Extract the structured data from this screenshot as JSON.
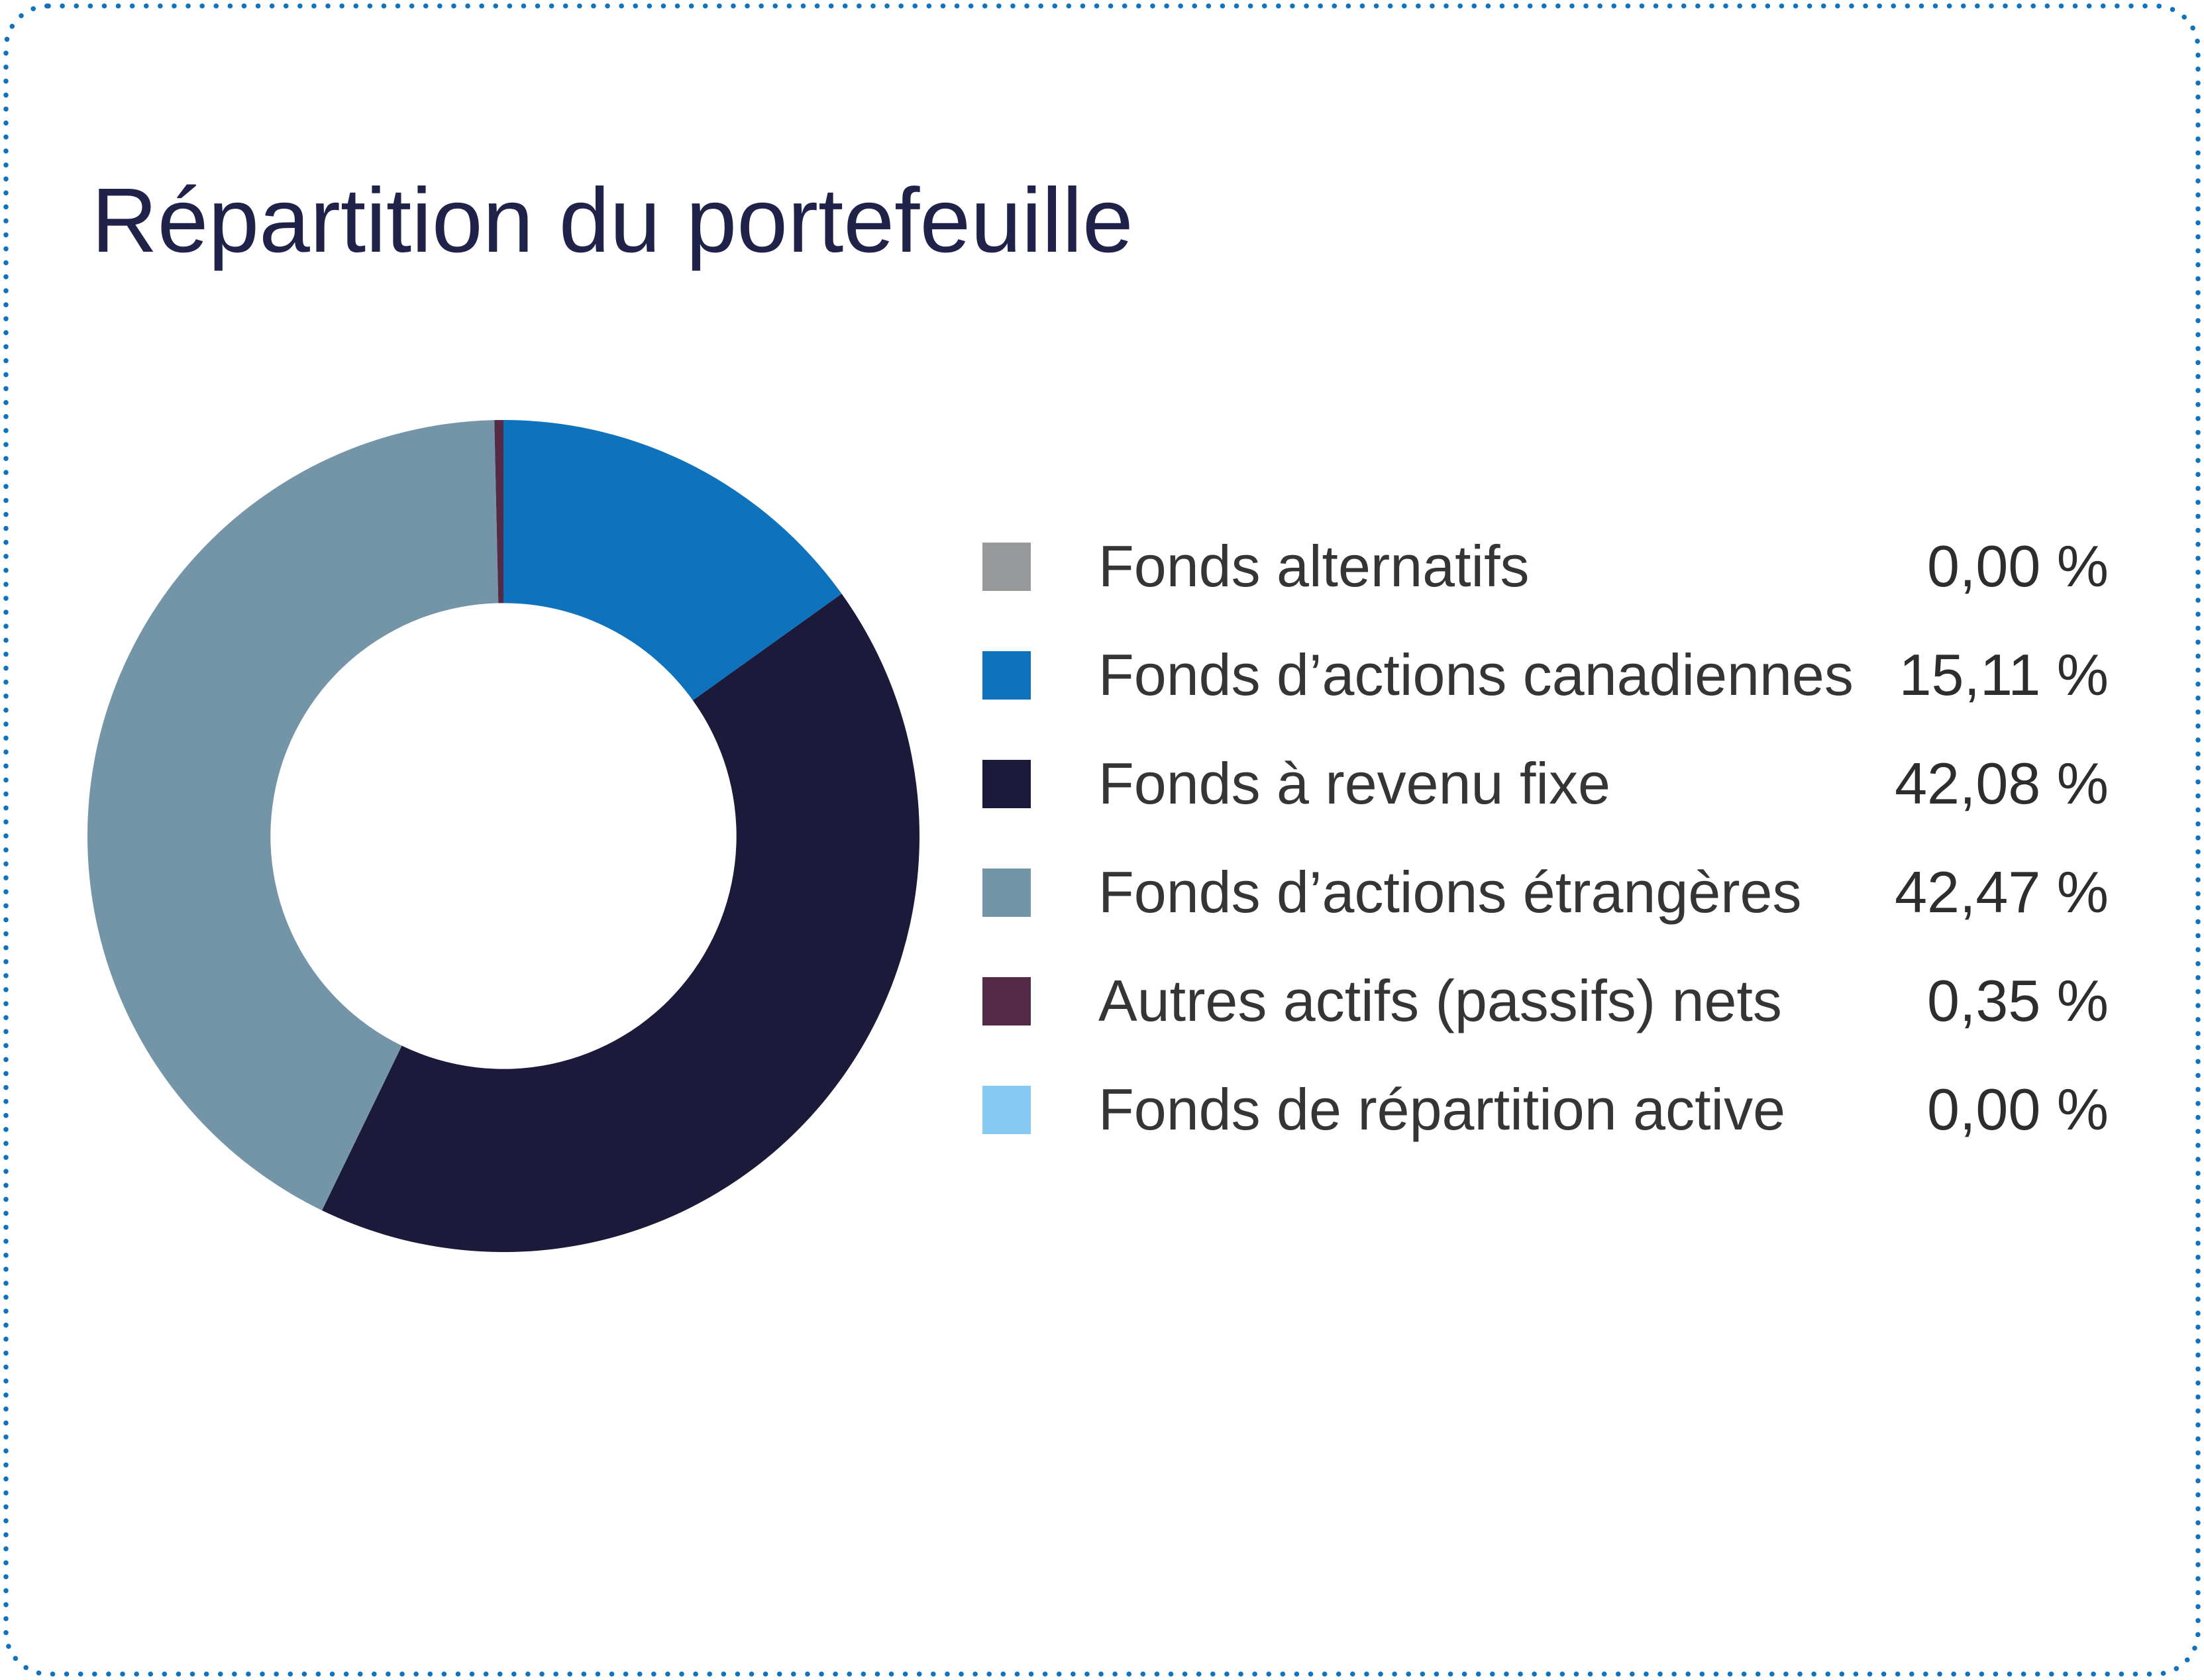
{
  "page": {
    "background": "#ffffff",
    "border_color": "#0f72bc"
  },
  "chart_data": {
    "type": "pie",
    "subtype": "donut",
    "title": "Répartition du portefeuille",
    "title_color": "#20224a",
    "legend_position": "right",
    "start_angle_deg": -90,
    "direction": "clockwise",
    "inner_radius_ratio": 0.56,
    "series": [
      {
        "label": "Fonds alternatifs",
        "value": 0.0,
        "display": "0,00 %",
        "color": "#98999b"
      },
      {
        "label": "Fonds d’actions canadiennes",
        "value": 15.11,
        "display": "15,11 %",
        "color": "#0e72bc"
      },
      {
        "label": "Fonds à revenu fixe",
        "value": 42.08,
        "display": "42,08 %",
        "color": "#1b1a3a"
      },
      {
        "label": "Fonds d’actions étrangères",
        "value": 42.47,
        "display": "42,47 %",
        "color": "#7495a8"
      },
      {
        "label": "Autres actifs (passifs) nets",
        "value": 0.35,
        "display": "0,35 %",
        "color": "#532b47"
      },
      {
        "label": "Fonds de répartition active",
        "value": 0.0,
        "display": "0,00 %",
        "color": "#84caf1"
      }
    ]
  }
}
